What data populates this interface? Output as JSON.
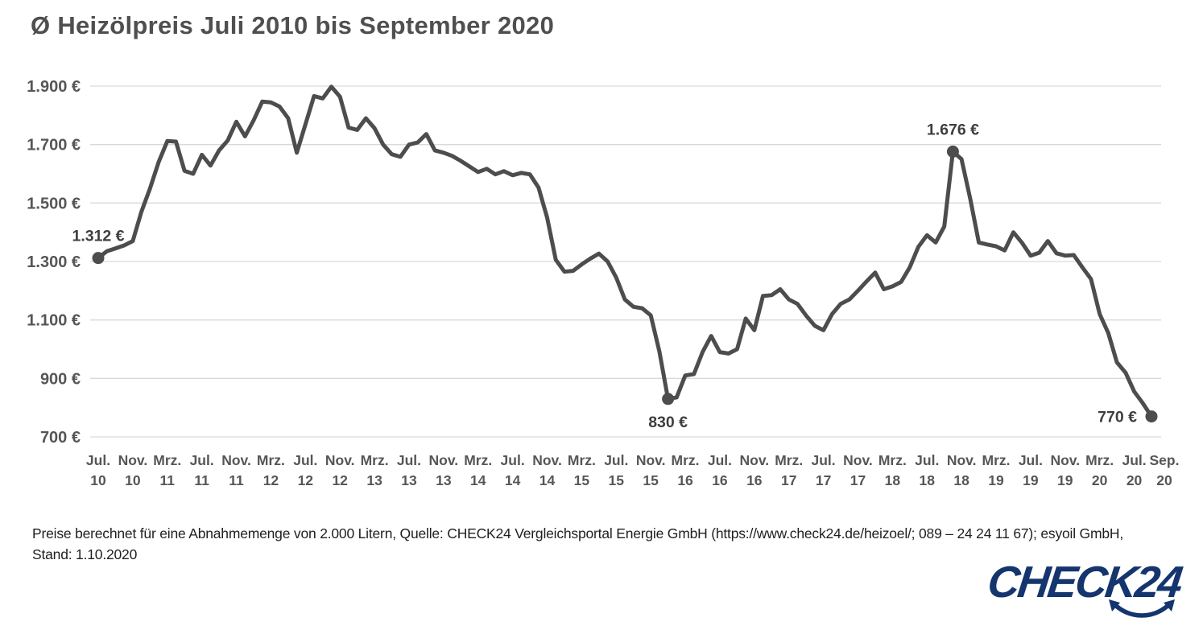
{
  "title": "Ø Heizölpreis Juli 2010 bis September 2020",
  "chart_data": {
    "type": "line",
    "title": "Ø Heizölpreis Juli 2010 bis September 2020",
    "x_start": "Juli 2010",
    "x_end": "September 2020",
    "interval": "monthly",
    "ylim": [
      700,
      1900
    ],
    "grid": "horizontal",
    "legend": "none",
    "line_color": "#4d4d4d",
    "grid_color": "#d9d9d9",
    "y_ticks": [
      {
        "value": 1900,
        "label": "1.900 €"
      },
      {
        "value": 1700,
        "label": "1.700 €"
      },
      {
        "value": 1500,
        "label": "1.500 €"
      },
      {
        "value": 1300,
        "label": "1.300 €"
      },
      {
        "value": 1100,
        "label": "1.100 €"
      },
      {
        "value": 900,
        "label": "900 €"
      },
      {
        "value": 700,
        "label": "700 €"
      }
    ],
    "x_ticks": [
      {
        "month": "Jul.",
        "year": "10"
      },
      {
        "month": "Nov.",
        "year": "10"
      },
      {
        "month": "Mrz.",
        "year": "11"
      },
      {
        "month": "Jul.",
        "year": "11"
      },
      {
        "month": "Nov.",
        "year": "11"
      },
      {
        "month": "Mrz.",
        "year": "12"
      },
      {
        "month": "Jul.",
        "year": "12"
      },
      {
        "month": "Nov.",
        "year": "12"
      },
      {
        "month": "Mrz.",
        "year": "13"
      },
      {
        "month": "Jul.",
        "year": "13"
      },
      {
        "month": "Nov.",
        "year": "13"
      },
      {
        "month": "Mrz.",
        "year": "14"
      },
      {
        "month": "Jul.",
        "year": "14"
      },
      {
        "month": "Nov.",
        "year": "14"
      },
      {
        "month": "Mrz.",
        "year": "15"
      },
      {
        "month": "Jul.",
        "year": "15"
      },
      {
        "month": "Nov.",
        "year": "15"
      },
      {
        "month": "Mrz.",
        "year": "16"
      },
      {
        "month": "Jul.",
        "year": "16"
      },
      {
        "month": "Nov.",
        "year": "16"
      },
      {
        "month": "Mrz.",
        "year": "17"
      },
      {
        "month": "Jul.",
        "year": "17"
      },
      {
        "month": "Nov.",
        "year": "17"
      },
      {
        "month": "Mrz.",
        "year": "18"
      },
      {
        "month": "Jul.",
        "year": "18"
      },
      {
        "month": "Nov.",
        "year": "18"
      },
      {
        "month": "Mrz.",
        "year": "19"
      },
      {
        "month": "Jul.",
        "year": "19"
      },
      {
        "month": "Nov.",
        "year": "19"
      },
      {
        "month": "Mrz.",
        "year": "20"
      },
      {
        "month": "Jul.",
        "year": "20"
      },
      {
        "month": "Sep.",
        "year": "20"
      }
    ],
    "values": [
      1312,
      1335,
      1345,
      1355,
      1370,
      1470,
      1550,
      1640,
      1712,
      1710,
      1610,
      1600,
      1665,
      1628,
      1680,
      1714,
      1778,
      1728,
      1783,
      1847,
      1844,
      1830,
      1790,
      1672,
      1769,
      1866,
      1858,
      1898,
      1864,
      1758,
      1750,
      1790,
      1756,
      1700,
      1667,
      1658,
      1700,
      1707,
      1736,
      1680,
      1672,
      1661,
      1644,
      1625,
      1606,
      1617,
      1598,
      1609,
      1595,
      1603,
      1598,
      1553,
      1450,
      1306,
      1265,
      1268,
      1290,
      1310,
      1327,
      1300,
      1245,
      1170,
      1145,
      1140,
      1116,
      992,
      830,
      835,
      910,
      915,
      990,
      1045,
      990,
      985,
      1000,
      1105,
      1065,
      1182,
      1185,
      1205,
      1170,
      1155,
      1115,
      1080,
      1065,
      1120,
      1155,
      1170,
      1200,
      1232,
      1262,
      1205,
      1215,
      1230,
      1280,
      1350,
      1390,
      1365,
      1420,
      1676,
      1650,
      1515,
      1365,
      1358,
      1352,
      1338,
      1400,
      1364,
      1320,
      1330,
      1370,
      1328,
      1320,
      1322,
      1280,
      1240,
      1120,
      1055,
      955,
      920,
      855,
      815,
      770
    ],
    "annotations": [
      {
        "label": "1.312 €",
        "index": 0,
        "value": 1312,
        "placement": "above"
      },
      {
        "label": "830 €",
        "index": 66,
        "value": 830,
        "placement": "below"
      },
      {
        "label": "1.676 €",
        "index": 99,
        "value": 1676,
        "placement": "above"
      },
      {
        "label": "770 €",
        "index": 122,
        "value": 770,
        "placement": "left"
      }
    ]
  },
  "footer": {
    "line1": "Preise berechnet für eine Abnahmemenge von 2.000 Litern, Quelle: CHECK24 Vergleichsportal Energie GmbH (https://www.check24.de/heizoel/; 089 – 24 24 11 67); esyoil GmbH,",
    "line2": "Stand: 1.10.2020"
  },
  "logo": {
    "text": "CHECK24",
    "color": "#14356e"
  }
}
